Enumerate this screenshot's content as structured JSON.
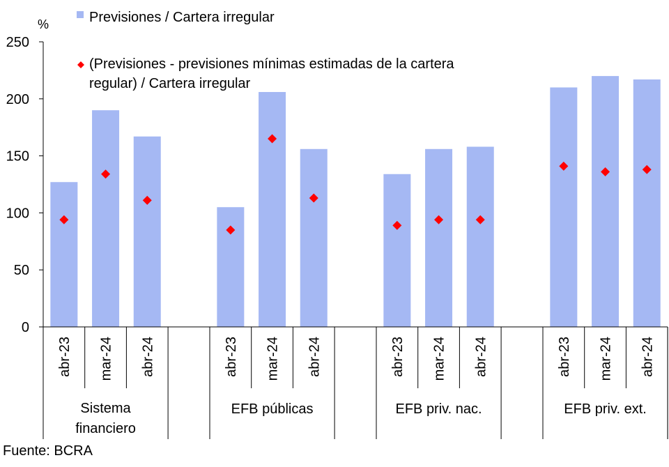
{
  "chart_data": {
    "type": "bar",
    "ylabel": "%",
    "ylim": [
      0,
      250
    ],
    "yticks": [
      0,
      50,
      100,
      150,
      200,
      250
    ],
    "groups": [
      {
        "name": "Sistema financiero",
        "categories": [
          "abr-23",
          "mar-24",
          "abr-24"
        ]
      },
      {
        "name": "EFB públicas",
        "categories": [
          "abr-23",
          "mar-24",
          "abr-24"
        ]
      },
      {
        "name": "EFB priv. nac.",
        "categories": [
          "abr-23",
          "mar-24",
          "abr-24"
        ]
      },
      {
        "name": "EFB priv. ext.",
        "categories": [
          "abr-23",
          "mar-24",
          "abr-24"
        ]
      }
    ],
    "series": [
      {
        "name": "Previsiones / Cartera irregular",
        "type": "bar",
        "color": "#a5b8f3",
        "values": [
          127,
          190,
          167,
          105,
          206,
          156,
          134,
          156,
          158,
          210,
          220,
          217
        ]
      },
      {
        "name": "(Previsiones - previsiones mínimas estimadas de la cartera regular) / Cartera irregular",
        "name_lines": [
          "(Previsiones - previsiones mínimas estimadas de la cartera",
          "regular) / Cartera irregular"
        ],
        "type": "scatter",
        "marker": "diamond",
        "color": "#ff0000",
        "values": [
          94,
          134,
          111,
          85,
          165,
          113,
          89,
          94,
          94,
          141,
          136,
          138
        ]
      }
    ],
    "grid": false,
    "legend": "top"
  },
  "source": "Fuente: BCRA"
}
